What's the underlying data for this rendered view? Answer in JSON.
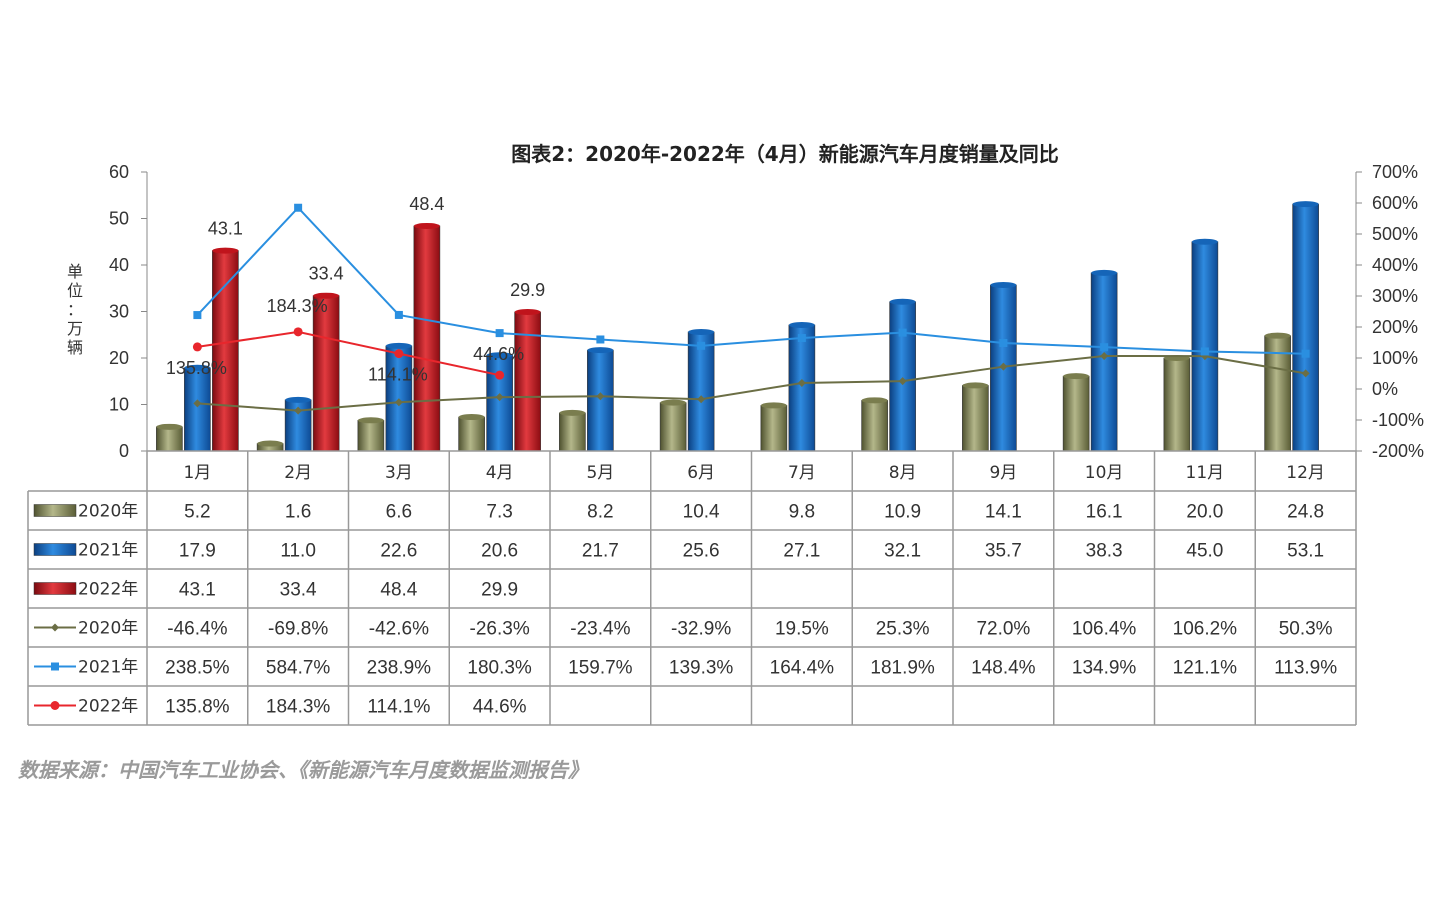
{
  "chart_data": {
    "type": "bar",
    "title": "图表2：2020年-2022年（4月）新能源汽车月度销量及同比",
    "unit_label": "单位：万辆",
    "categories": [
      "1月",
      "2月",
      "3月",
      "4月",
      "5月",
      "6月",
      "7月",
      "8月",
      "9月",
      "10月",
      "11月",
      "12月"
    ],
    "y_left": {
      "ylim": [
        0,
        60
      ],
      "ticks": [
        "0",
        "10",
        "20",
        "30",
        "40",
        "50",
        "60"
      ]
    },
    "y_right": {
      "ylim": [
        -200,
        700
      ],
      "ticks": [
        "-200%",
        "-100%",
        "0%",
        "100%",
        "200%",
        "300%",
        "400%",
        "500%",
        "600%",
        "700%"
      ]
    },
    "bar_series": [
      {
        "name": "2020年",
        "color": "#7a7d4e",
        "values": [
          5.2,
          1.6,
          6.6,
          7.3,
          8.2,
          10.4,
          9.8,
          10.9,
          14.1,
          16.1,
          20.0,
          24.8
        ]
      },
      {
        "name": "2021年",
        "color": "#1565b8",
        "values": [
          17.9,
          11.0,
          22.6,
          20.6,
          21.7,
          25.6,
          27.1,
          32.1,
          35.7,
          38.3,
          45.0,
          53.1
        ]
      },
      {
        "name": "2022年",
        "color": "#c0141c",
        "values": [
          43.1,
          33.4,
          48.4,
          29.9,
          null,
          null,
          null,
          null,
          null,
          null,
          null,
          null
        ]
      }
    ],
    "line_series": [
      {
        "name": "2020年",
        "color": "#6b6e45",
        "marker": "diamond",
        "values": [
          -46.4,
          -69.8,
          -42.6,
          -26.3,
          -23.4,
          -32.9,
          19.5,
          25.3,
          72.0,
          106.4,
          106.2,
          50.3
        ]
      },
      {
        "name": "2021年",
        "color": "#2a8fe0",
        "marker": "square",
        "values": [
          238.5,
          584.7,
          238.9,
          180.3,
          159.7,
          139.3,
          164.4,
          181.9,
          148.4,
          134.9,
          121.1,
          113.9
        ]
      },
      {
        "name": "2022年",
        "color": "#e8262c",
        "marker": "circle",
        "values": [
          135.8,
          184.3,
          114.1,
          44.6,
          null,
          null,
          null,
          null,
          null,
          null,
          null,
          null
        ]
      }
    ],
    "bar_data_labels": [
      "43.1",
      "33.4",
      "48.4",
      "29.9"
    ],
    "line_data_labels": [
      "135.8%",
      "184.3%",
      "114.1%",
      "44.6%"
    ],
    "table": {
      "rows": [
        [
          "5.2",
          "1.6",
          "6.6",
          "7.3",
          "8.2",
          "10.4",
          "9.8",
          "10.9",
          "14.1",
          "16.1",
          "20.0",
          "24.8"
        ],
        [
          "17.9",
          "11.0",
          "22.6",
          "20.6",
          "21.7",
          "25.6",
          "27.1",
          "32.1",
          "35.7",
          "38.3",
          "45.0",
          "53.1"
        ],
        [
          "43.1",
          "33.4",
          "48.4",
          "29.9",
          "",
          "",
          "",
          "",
          "",
          "",
          "",
          ""
        ],
        [
          "-46.4%",
          "-69.8%",
          "-42.6%",
          "-26.3%",
          "-23.4%",
          "-32.9%",
          "19.5%",
          "25.3%",
          "72.0%",
          "106.4%",
          "106.2%",
          "50.3%"
        ],
        [
          "238.5%",
          "584.7%",
          "238.9%",
          "180.3%",
          "159.7%",
          "139.3%",
          "164.4%",
          "181.9%",
          "148.4%",
          "134.9%",
          "121.1%",
          "113.9%"
        ],
        [
          "135.8%",
          "184.3%",
          "114.1%",
          "44.6%",
          "",
          "",
          "",
          "",
          "",
          "",
          "",
          ""
        ]
      ]
    },
    "grid": false,
    "legend": "table-rows"
  },
  "source": "数据来源：中国汽车工业协会、《新能源汽车月度数据监测报告》"
}
